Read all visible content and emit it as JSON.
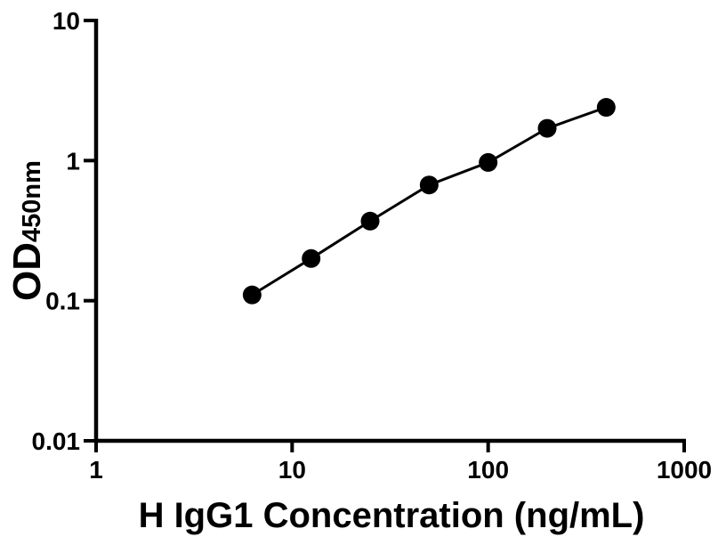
{
  "figure": {
    "background_color": "#ffffff",
    "foreground_color": "#000000"
  },
  "chart_data": {
    "type": "line",
    "title": "",
    "xlabel": "H IgG1 Concentration (ng/mL)",
    "ylabel": "OD450nm",
    "ylabel_main": "OD",
    "ylabel_sub": "450nm",
    "x_scale": "log",
    "y_scale": "log",
    "xlim": [
      1,
      1000
    ],
    "ylim": [
      0.01,
      10
    ],
    "x_ticks": {
      "values": [
        1,
        10,
        100,
        1000
      ],
      "labels": [
        "1",
        "10",
        "100",
        "1000"
      ]
    },
    "y_ticks": {
      "values": [
        0.01,
        0.1,
        1,
        10
      ],
      "labels": [
        "0.01",
        "0.1",
        "1",
        "10"
      ]
    },
    "grid": false,
    "legend": false,
    "series": [
      {
        "marker": "filled-circle",
        "marker_color": "#000000",
        "line_color": "#000000",
        "x": [
          6.25,
          12.5,
          25,
          50,
          100,
          200,
          400
        ],
        "y": [
          0.11,
          0.2,
          0.37,
          0.67,
          0.97,
          1.7,
          2.4
        ]
      }
    ]
  }
}
